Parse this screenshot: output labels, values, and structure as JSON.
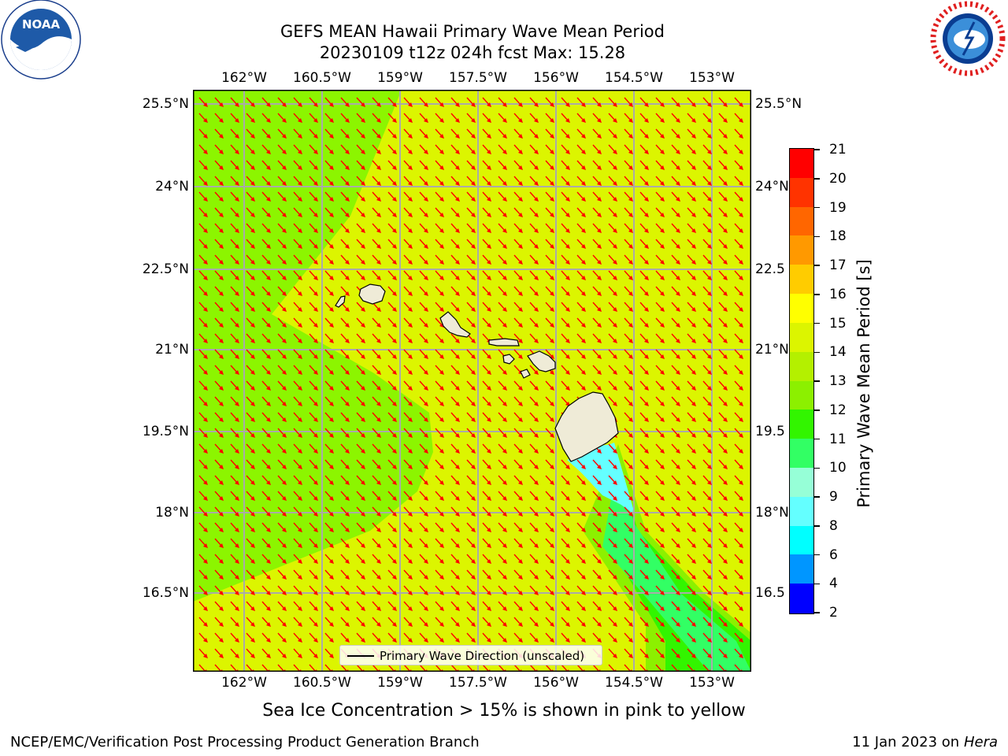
{
  "title": {
    "line1": "GEFS MEAN Hawaii Primary Wave Mean Period",
    "line2": "20230109 t12z 024h fcst   Max: 15.28"
  },
  "map": {
    "lon_ticks": [
      "162°W",
      "160.5°W",
      "159°W",
      "157.5°W",
      "156°W",
      "154.5°W",
      "153°W"
    ],
    "lat_ticks_left": [
      "25.5°N",
      "24°N",
      "22.5°N",
      "21°N",
      "19.5°N",
      "18°N",
      "16.5°N"
    ],
    "lat_ticks_right": [
      "25.5°N",
      "24°N",
      "22.5",
      "21°N",
      "19.5",
      "18°N",
      "16.5"
    ],
    "background_color": "#dcf500",
    "swell_color": "#8cf500",
    "arrow_color": "#ff0000",
    "grid_color": "#aaaaaa",
    "land_color": "#efebd7"
  },
  "colorbar": {
    "label": "Primary Wave Mean Period [s]",
    "ticks": [
      "21",
      "20",
      "19",
      "18",
      "17",
      "16",
      "15",
      "14",
      "13",
      "12",
      "11",
      "10",
      "9",
      "8",
      "6",
      "4",
      "2"
    ],
    "colors": [
      "#ff0000",
      "#ff3300",
      "#ff6600",
      "#ff9900",
      "#ffcc00",
      "#ffff00",
      "#dcf500",
      "#b4f000",
      "#8cf000",
      "#32f500",
      "#32ff64",
      "#96ffd7",
      "#64ffff",
      "#00ffff",
      "#0096ff",
      "#0000ff"
    ]
  },
  "legend": {
    "label": "Primary Wave Direction (unscaled)"
  },
  "note": "Sea Ice Concentration > 15% is shown in pink to yellow",
  "footer": {
    "left": "NCEP/EMC/Verification Post Processing Product Generation Branch",
    "right_date": "11 Jan 2023 on ",
    "right_host": "Hera"
  },
  "logos": {
    "noaa": "NOAA",
    "nws": "NATIONAL WEATHER SERVICE",
    "noaa_ring": "NATIONAL OCEANIC AND ATMOSPHERIC ADMINISTRATION · U.S. DEPARTMENT OF COMMERCE"
  }
}
